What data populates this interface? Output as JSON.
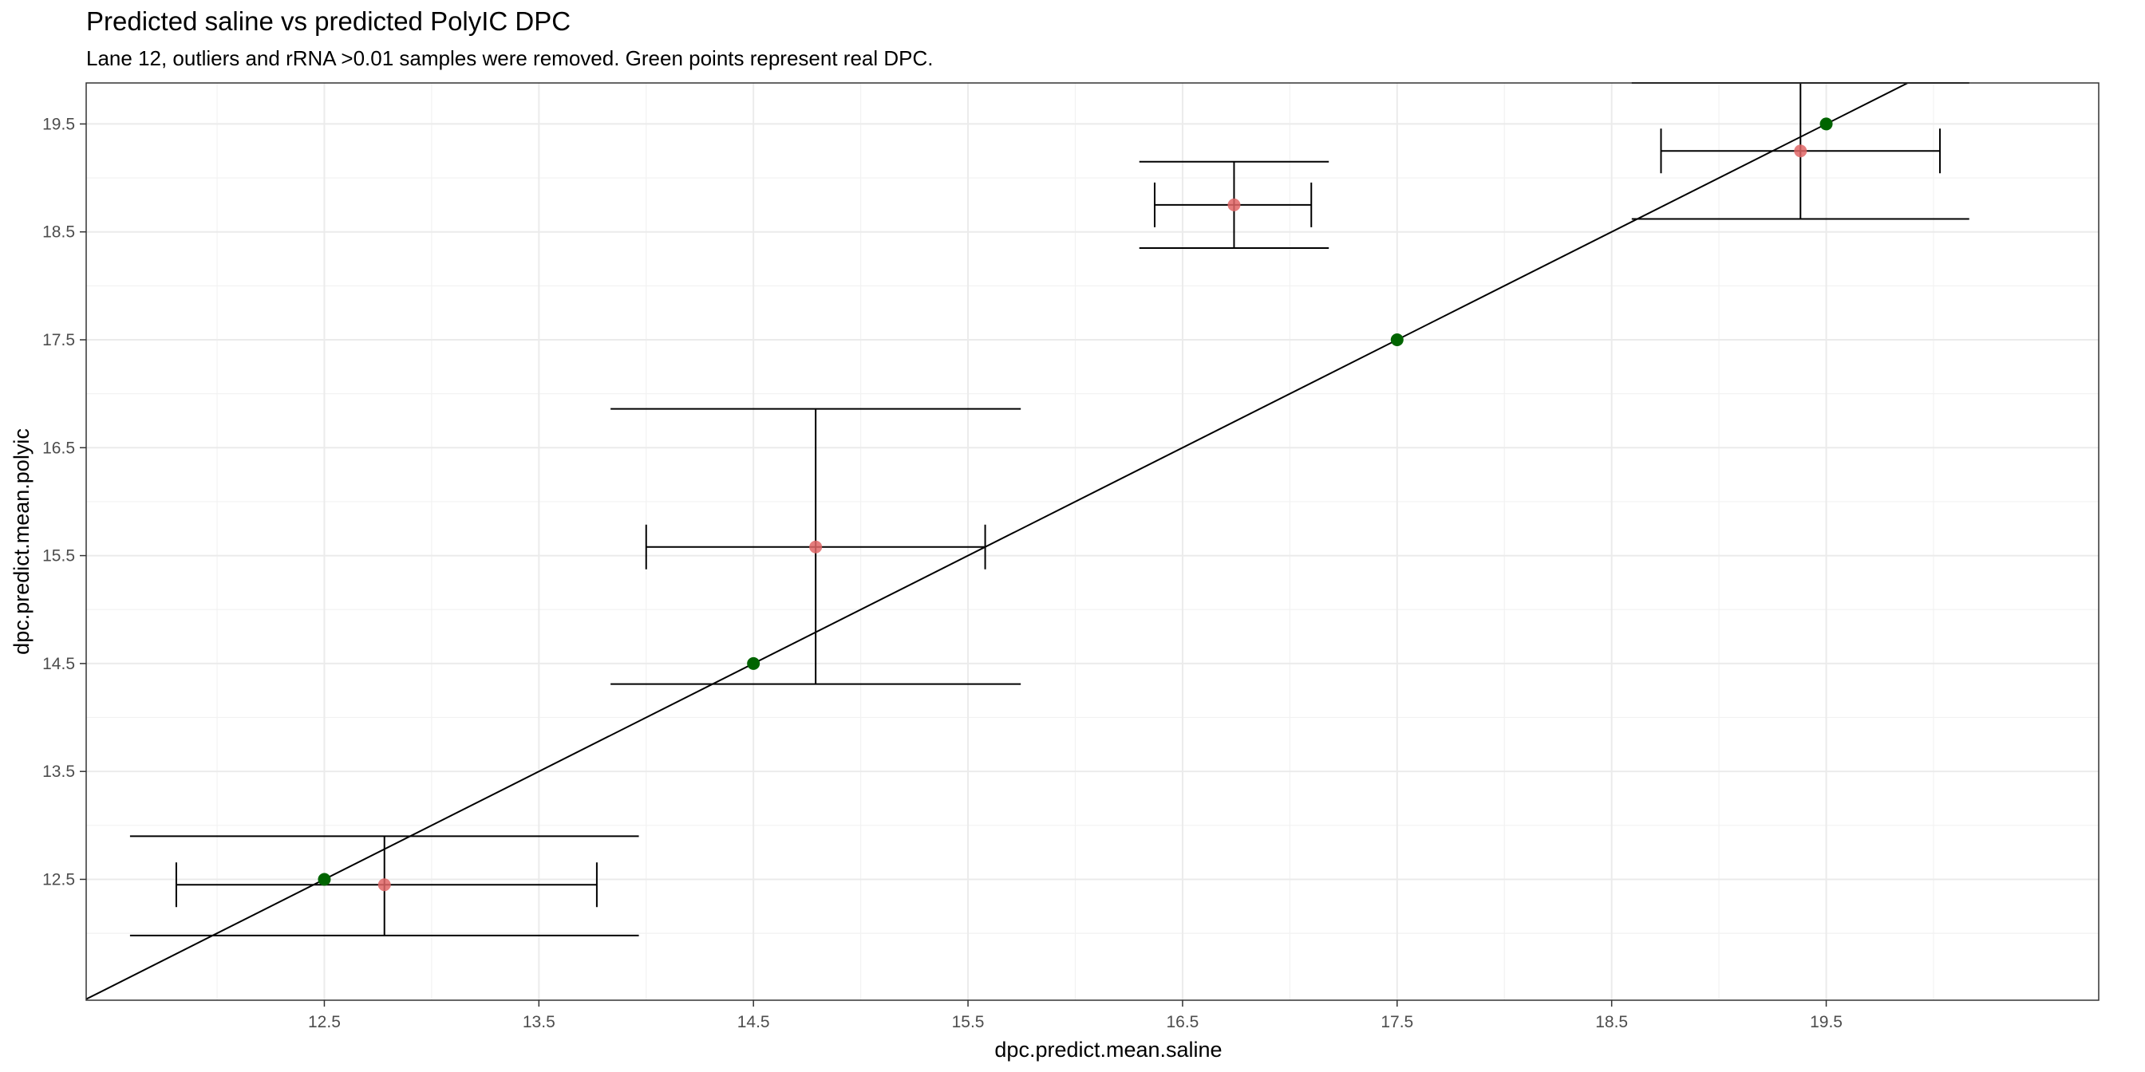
{
  "chart_data": {
    "type": "scatter",
    "title": "Predicted saline vs predicted PolyIC DPC",
    "subtitle": "Lane 12, outliers and rRNA >0.01 samples were removed. Green points represent real DPC.",
    "xlabel": "dpc.predict.mean.saline",
    "ylabel": "dpc.predict.mean.polyic",
    "xlim": [
      11.39,
      20.77
    ],
    "ylim": [
      11.38,
      19.88
    ],
    "xticks": [
      "12.5",
      "13.5",
      "14.5",
      "15.5",
      "16.5",
      "17.5",
      "18.5",
      "19.5"
    ],
    "yticks": [
      "12.5",
      "13.5",
      "14.5",
      "15.5",
      "16.5",
      "17.5",
      "18.5",
      "19.5"
    ],
    "grid": true,
    "predicted_points": {
      "color": "#e06666",
      "points": [
        {
          "x": 12.78,
          "y": 12.45,
          "xmin": 11.81,
          "xmax": 13.77,
          "ymin": 11.98,
          "ymax": 12.9
        },
        {
          "x": 14.79,
          "y": 15.58,
          "xmin": 14.0,
          "xmax": 15.58,
          "ymin": 14.31,
          "ymax": 16.86
        },
        {
          "x": 16.74,
          "y": 18.75,
          "xmin": 16.37,
          "xmax": 17.1,
          "ymin": 18.35,
          "ymax": 19.15
        },
        {
          "x": 19.38,
          "y": 19.25,
          "xmin": 18.73,
          "xmax": 20.03,
          "ymin": 18.62,
          "ymax": 19.88
        }
      ]
    },
    "real_points": {
      "color": "#006400",
      "points": [
        {
          "x": 12.5,
          "y": 12.5
        },
        {
          "x": 14.5,
          "y": 14.5
        },
        {
          "x": 17.5,
          "y": 17.5
        },
        {
          "x": 19.5,
          "y": 19.5
        }
      ]
    },
    "reference_line": {
      "slope": 1,
      "intercept": 0,
      "color": "#000000"
    }
  }
}
